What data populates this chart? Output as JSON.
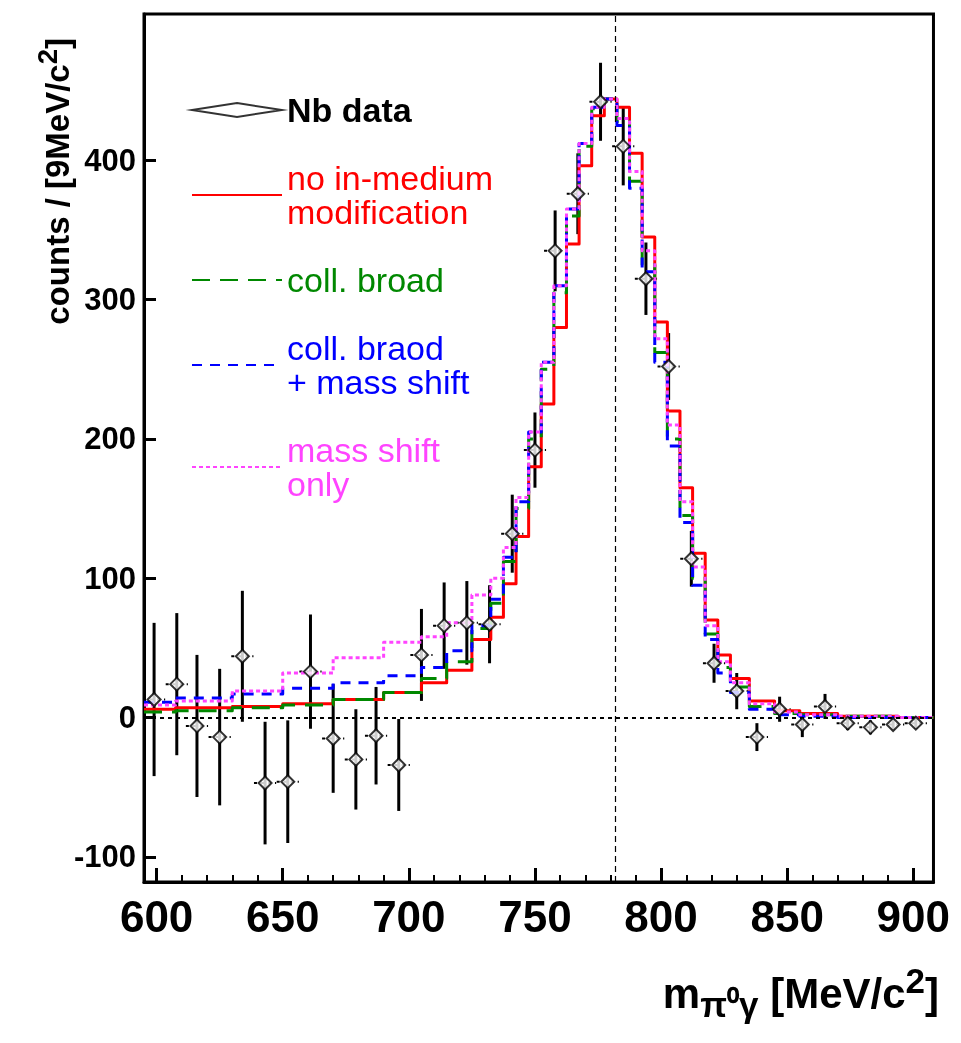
{
  "chart_data": {
    "type": "step",
    "xlabel": "m$_{π⁰γ}$ [MeV/c$^{2}$]",
    "ylabel": "counts / [9MeV/c$^{2}$]",
    "xlim": [
      595,
      908
    ],
    "xticks": [
      600,
      650,
      700,
      750,
      800,
      850,
      900
    ],
    "ylim": [
      -118,
      505
    ],
    "yticks": [
      -100,
      0,
      100,
      200,
      300,
      400
    ],
    "legend": "top left",
    "grid": false,
    "ref_lines": [
      {
        "axis": "y",
        "value": 0,
        "line_style": "dotted",
        "color": "#000000"
      },
      {
        "axis": "x",
        "value": 782,
        "line_style": "dashed",
        "color": "#000000"
      }
    ],
    "series": [
      {
        "name": "Nb data",
        "type": "scatter",
        "marker": "diamond",
        "color": "#000000",
        "x": [
          599,
          608,
          616,
          625,
          634,
          643,
          652,
          661,
          670,
          679,
          687,
          696,
          705,
          714,
          723,
          732,
          741,
          750,
          758,
          767,
          776,
          785,
          794,
          803,
          812,
          821,
          830,
          838,
          847,
          856,
          865,
          874,
          883,
          892,
          901
        ],
        "values": [
          13,
          24,
          -6,
          -14,
          44,
          -47,
          -46,
          33,
          -15,
          -30,
          -13,
          -34,
          45,
          66,
          68,
          67,
          132,
          192,
          335,
          376,
          442,
          410,
          315,
          252,
          114,
          39,
          19,
          -14,
          6,
          -5,
          8,
          -4,
          -7,
          -5,
          -4
        ],
        "errors": [
          55,
          51,
          51,
          49,
          47,
          44,
          44,
          41,
          39,
          36,
          35,
          33,
          33,
          31,
          30,
          28,
          28,
          27,
          29,
          29,
          28,
          28,
          26,
          24,
          20,
          14,
          13,
          10,
          9,
          9,
          9,
          5,
          5,
          4,
          4
        ],
        "xerrors": [
          4.4,
          4.4,
          4.4,
          4.4,
          4.4,
          4.4,
          4.4,
          4.4,
          4.4,
          4.4,
          4.4,
          4.4,
          4.4,
          4.4,
          4.4,
          4.4,
          4.4,
          4.4,
          4.4,
          4.4,
          4.4,
          4.4,
          4.4,
          4.4,
          4.4,
          4.4,
          4.4,
          4.4,
          4.4,
          4.4,
          4.4,
          4.4,
          4.4,
          4.4,
          4.4
        ]
      },
      {
        "name": "no in-medium\nmodification",
        "line_style": "solid",
        "color": "#ff0000",
        "x": [
          595,
          620,
          640,
          660,
          680,
          700,
          710,
          720,
          730,
          735,
          740,
          745,
          750,
          755,
          760,
          765,
          770,
          775,
          780,
          785,
          790,
          795,
          800,
          805,
          810,
          815,
          820,
          825,
          830,
          840,
          850,
          860,
          880,
          908
        ],
        "values": [
          6,
          7,
          8,
          10,
          13,
          18,
          25,
          34,
          56,
          72,
          96,
          130,
          180,
          225,
          280,
          340,
          396,
          432,
          444,
          438,
          405,
          345,
          284,
          220,
          165,
          118,
          70,
          45,
          28,
          12,
          5,
          3,
          1,
          0
        ]
      },
      {
        "name": "coll. broad",
        "line_style": "dashed",
        "color": "#008800",
        "x": [
          595,
          620,
          640,
          660,
          680,
          700,
          710,
          720,
          730,
          735,
          740,
          745,
          750,
          755,
          760,
          765,
          770,
          775,
          780,
          785,
          790,
          795,
          800,
          805,
          810,
          815,
          820,
          825,
          830,
          840,
          850,
          860,
          880,
          908
        ],
        "values": [
          4,
          5,
          7,
          9,
          13,
          18,
          28,
          40,
          64,
          82,
          112,
          150,
          200,
          250,
          305,
          360,
          410,
          437,
          444,
          428,
          385,
          325,
          262,
          200,
          145,
          100,
          60,
          36,
          22,
          8,
          3,
          2,
          1,
          0
        ]
      },
      {
        "name": "coll. braod\n+ mass shift",
        "line_style": "dashed",
        "color": "#0000ff",
        "x": [
          595,
          620,
          640,
          660,
          680,
          700,
          710,
          720,
          730,
          735,
          740,
          745,
          750,
          755,
          760,
          765,
          770,
          775,
          780,
          785,
          790,
          795,
          800,
          805,
          810,
          815,
          820,
          825,
          830,
          840,
          850,
          860,
          880,
          908
        ],
        "values": [
          11,
          14,
          17,
          21,
          25,
          30,
          36,
          48,
          66,
          85,
          115,
          155,
          205,
          255,
          310,
          365,
          412,
          438,
          444,
          425,
          380,
          320,
          255,
          195,
          140,
          95,
          56,
          32,
          18,
          6,
          2,
          1,
          0,
          0
        ]
      },
      {
        "name": "mass shift\nonly",
        "line_style": "dotted",
        "color": "#ff44ff",
        "x": [
          595,
          620,
          640,
          660,
          680,
          700,
          710,
          720,
          730,
          735,
          740,
          745,
          750,
          755,
          760,
          765,
          770,
          775,
          780,
          785,
          790,
          795,
          800,
          805,
          810,
          815,
          820,
          825,
          830,
          840,
          850,
          860,
          880,
          908
        ],
        "values": [
          9,
          12,
          19,
          32,
          43,
          54,
          58,
          68,
          88,
          100,
          122,
          158,
          205,
          255,
          310,
          365,
          412,
          438,
          444,
          430,
          392,
          335,
          272,
          210,
          155,
          108,
          66,
          40,
          25,
          10,
          4,
          2,
          1,
          0
        ]
      }
    ]
  }
}
